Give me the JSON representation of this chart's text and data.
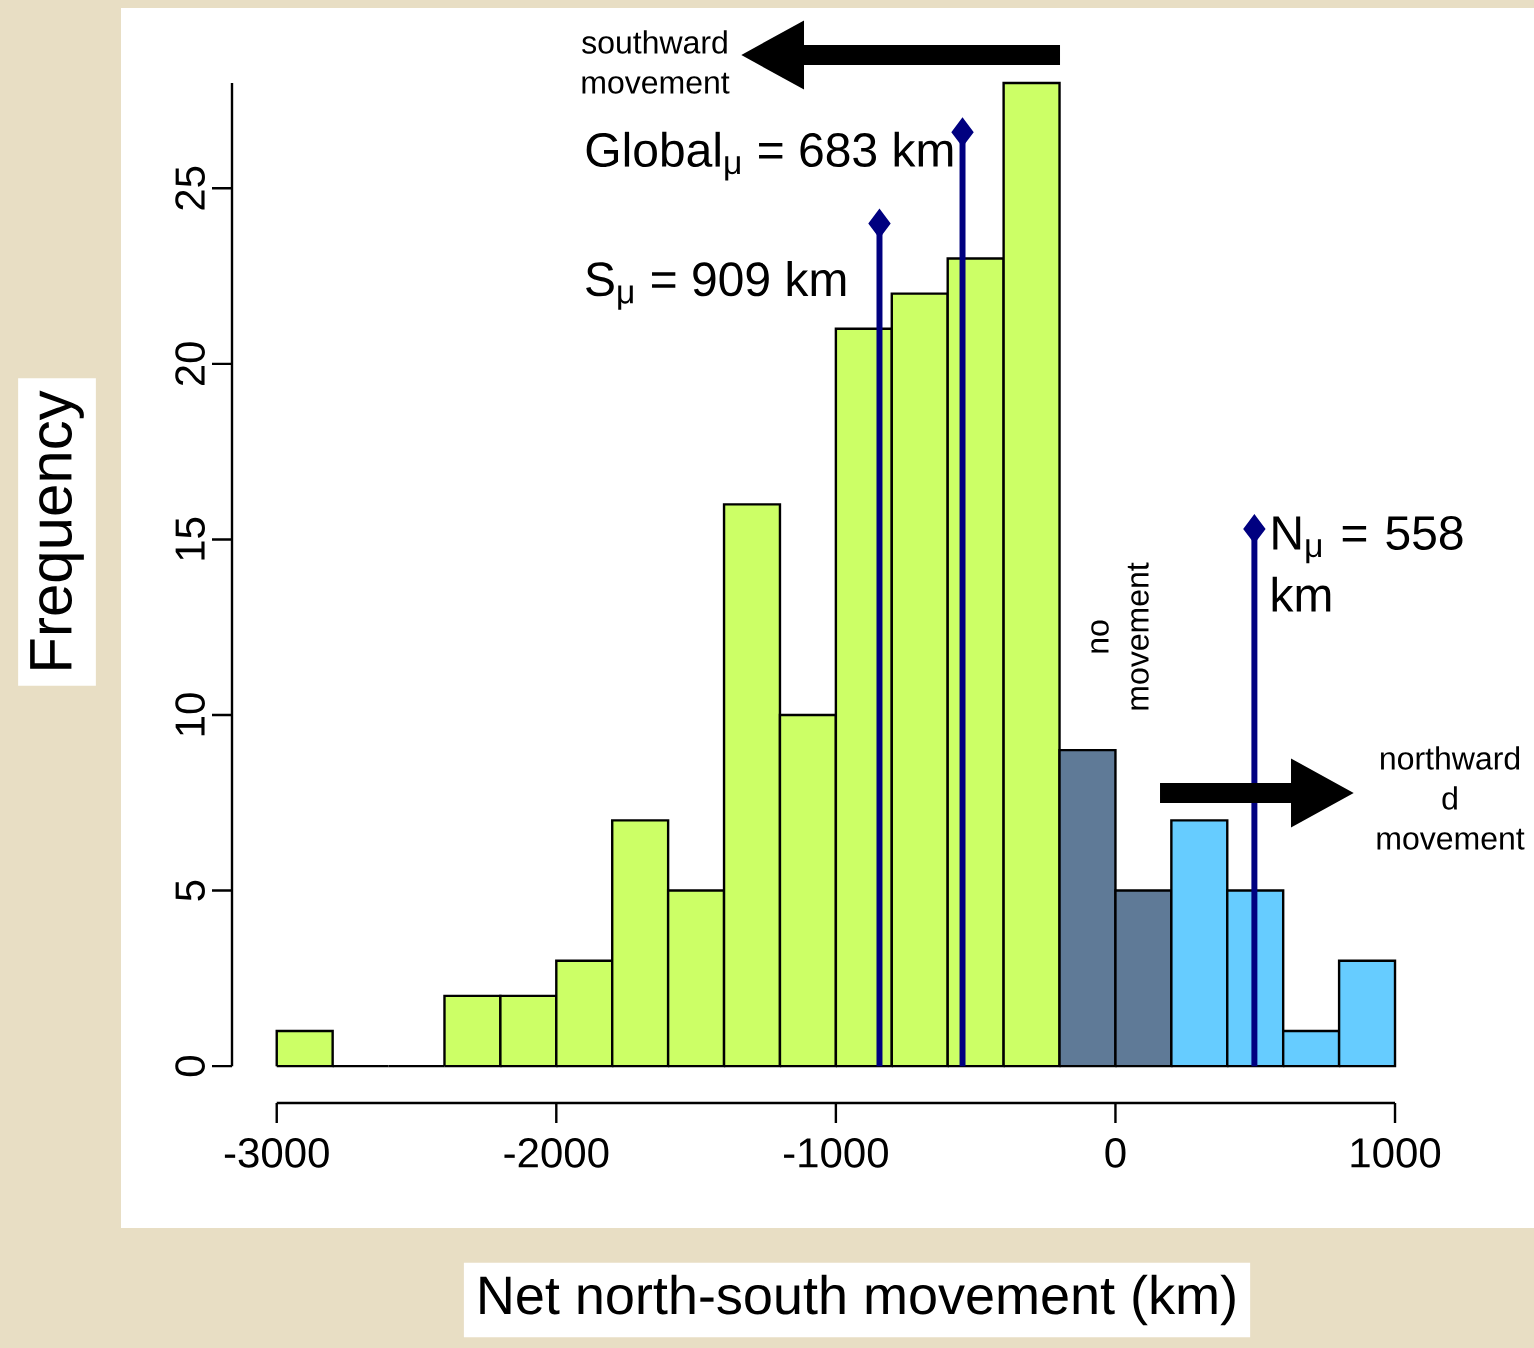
{
  "chart_data": {
    "type": "histogram",
    "xlabel": "Net north-south movement (km)",
    "ylabel": "Frequency",
    "bins": [
      -3000,
      -2800,
      -2600,
      -2400,
      -2200,
      -2000,
      -1800,
      -1600,
      -1400,
      -1200,
      -1000,
      -800,
      -600,
      -400,
      -200,
      0,
      200,
      400,
      600,
      800,
      1000
    ],
    "series": [
      {
        "values": [
          1,
          0,
          0,
          2,
          2,
          3,
          7,
          5,
          16,
          10,
          21,
          22,
          23,
          28,
          9,
          5,
          7,
          5,
          1,
          3
        ],
        "colors": [
          "#ccff66",
          null,
          null,
          "#ccff66",
          "#ccff66",
          "#ccff66",
          "#ccff66",
          "#ccff66",
          "#ccff66",
          "#ccff66",
          "#ccff66",
          "#ccff66",
          "#ccff66",
          "#ccff66",
          "#5f7a97",
          "#5f7a97",
          "#66ccff",
          "#66ccff",
          "#66ccff",
          "#66ccff"
        ]
      },
      {
        "type": "lollipop",
        "x": [
          -844,
          -547,
          497
        ],
        "values": [
          24,
          26.6,
          15.3
        ],
        "color": "#000080",
        "marker": "diamond"
      }
    ],
    "xlim": [
      -3000,
      1000
    ],
    "ylim": [
      0,
      28
    ],
    "xticks": [
      -3000,
      -2000,
      -1000,
      0,
      1000
    ],
    "yticks": [
      0,
      5,
      10,
      15,
      20,
      25
    ],
    "annotations": [
      "southward movement",
      "no movement",
      "northward d movement",
      {
        "text": "Global$_{μ}$ = 683 km",
        "x": -547,
        "y": 26.6
      },
      {
        "text": "S$_{μ}$ = 909 km",
        "x": -844,
        "y": 24
      },
      {
        "text": "N$_{μ}$ = 558 km",
        "x": 497,
        "y": 15.3
      }
    ]
  }
}
